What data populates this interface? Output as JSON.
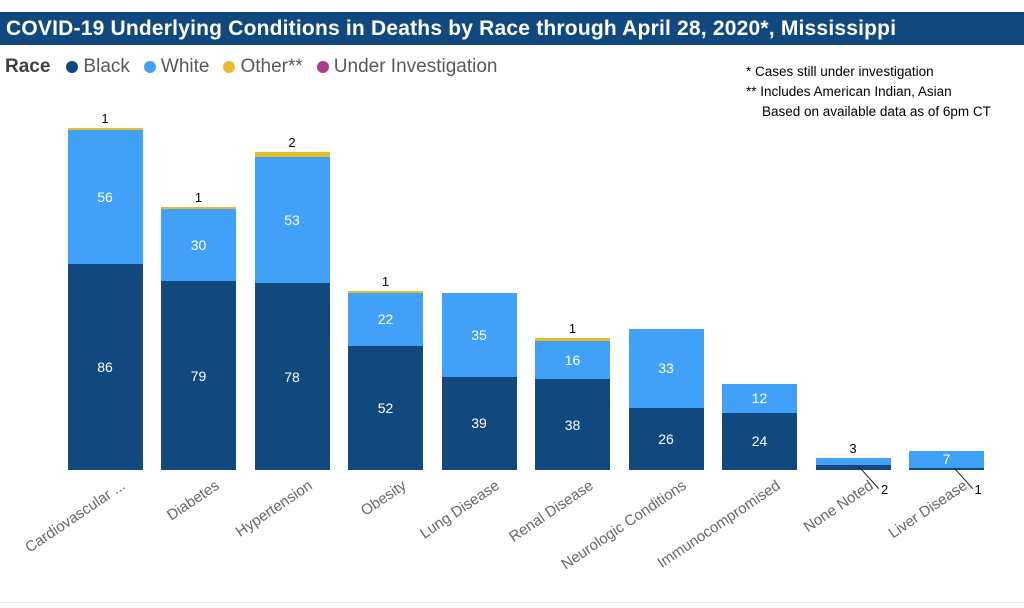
{
  "header": {
    "title": "COVID-19 Underlying Conditions in Deaths by Race through April 28, 2020*, Mississippi",
    "bg_color": "#11497E",
    "text_color": "#FFFFFF"
  },
  "legend": {
    "title": "Race",
    "items": [
      {
        "label": "Black",
        "color": "#11497E"
      },
      {
        "label": "White",
        "color": "#41A1F8"
      },
      {
        "label": "Other**",
        "color": "#E9BB2D"
      },
      {
        "label": "Under Investigation",
        "color": "#A83D8D"
      }
    ]
  },
  "footnotes": [
    "* Cases still under investigation",
    "** Includes American Indian, Asian",
    "Based on available data as of 6pm CT"
  ],
  "chart_data": {
    "type": "bar",
    "stacked": true,
    "orientation": "vertical",
    "gridlines": false,
    "y_axis_shown": false,
    "value_labels": true,
    "categories": [
      "Cardiovascular ...",
      "Diabetes",
      "Hypertension",
      "Obesity",
      "Lung Disease",
      "Renal Disease",
      "Neurologic Conditions",
      "Immunocompromised",
      "None Noted",
      "Liver Disease"
    ],
    "series": [
      {
        "name": "Black",
        "color": "#11497E",
        "values": [
          86,
          79,
          78,
          52,
          39,
          38,
          26,
          24,
          2,
          1
        ]
      },
      {
        "name": "White",
        "color": "#41A1F8",
        "values": [
          56,
          30,
          53,
          22,
          35,
          16,
          33,
          12,
          3,
          7
        ]
      },
      {
        "name": "Other**",
        "color": "#E9BB2D",
        "values": [
          1,
          1,
          2,
          1,
          0,
          1,
          0,
          0,
          0,
          0
        ]
      },
      {
        "name": "Under Investigation",
        "color": "#A83D8D",
        "values": [
          0,
          0,
          0,
          0,
          0,
          0,
          0,
          0,
          0,
          0
        ]
      }
    ],
    "totals": [
      143,
      110,
      133,
      75,
      74,
      55,
      59,
      36,
      5,
      8
    ]
  }
}
